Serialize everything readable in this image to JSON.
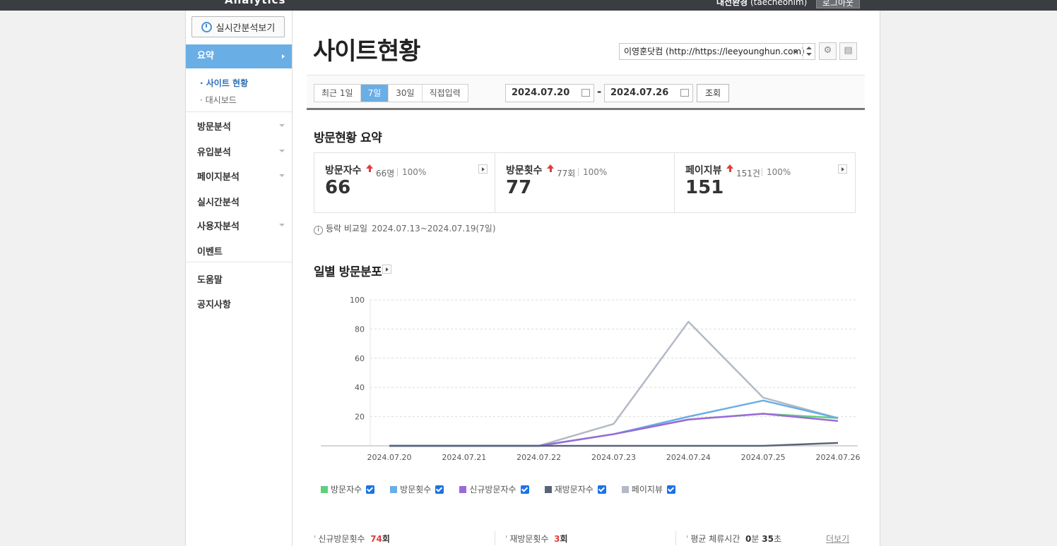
{
  "topbar": {
    "logo": "Analytics",
    "user_name": "대전환경",
    "user_id": "(taecheonim)",
    "logout": "로그아웃"
  },
  "sidebar": {
    "realtime_button": "실시간분석보기",
    "active_item": "요약",
    "sub_items": [
      "· 사이트 현황",
      "· 대시보드"
    ],
    "items": [
      "방문분석",
      "유입분석",
      "페이지분석",
      "실시간분석",
      "사용자분석",
      "이벤트",
      "도움말",
      "공지사항"
    ]
  },
  "page": {
    "title": "사이트현황",
    "site_select": "이영훈닷컴 (http://https://leeyounghun.com)"
  },
  "filter": {
    "ranges": [
      "최근 1일",
      "7일",
      "30일",
      "직접입력"
    ],
    "active_range": "7일",
    "start_date": "2024.07.20",
    "end_date": "2024.07.26",
    "dash": "-",
    "query_button": "조회"
  },
  "summary": {
    "title": "방문현황 요약",
    "cards": [
      {
        "label": "방문자수",
        "compare": "66명",
        "pct": "100%",
        "value": "66"
      },
      {
        "label": "방문횟수",
        "compare": "77회",
        "pct": "100%",
        "value": "77"
      },
      {
        "label": "페이지뷰",
        "compare": "151건",
        "pct": "100%",
        "value": "151"
      }
    ],
    "compare_label": "등락 비교일",
    "compare_range": "2024.07.13~2024.07.19(7일)"
  },
  "daily": {
    "title": "일별 방문분포"
  },
  "chart_data": {
    "type": "line",
    "x": [
      "2024.07.20",
      "2024.07.21",
      "2024.07.22",
      "2024.07.23",
      "2024.07.24",
      "2024.07.25",
      "2024.07.26"
    ],
    "yticks": [
      "100",
      "80",
      "60",
      "40",
      "20"
    ],
    "ylim": [
      0,
      100
    ],
    "grid": true,
    "series": [
      {
        "name": "방문자수",
        "color": "#5fd07a",
        "values": [
          0,
          0,
          0,
          8,
          18,
          22,
          19
        ]
      },
      {
        "name": "방문횟수",
        "color": "#6aaee6",
        "values": [
          0,
          0,
          0,
          8,
          20,
          31,
          19
        ]
      },
      {
        "name": "신규방문자수",
        "color": "#9b6ad8",
        "values": [
          0,
          0,
          0,
          8,
          18,
          22,
          17
        ]
      },
      {
        "name": "재방문자수",
        "color": "#5a6478",
        "values": [
          0,
          0,
          0,
          0,
          0,
          0,
          2
        ]
      },
      {
        "name": "페이지뷰",
        "color": "#b3bac6",
        "values": [
          0,
          0,
          0,
          15,
          85,
          33,
          19
        ]
      }
    ]
  },
  "bottom_stats": [
    {
      "label": "신규방문횟수",
      "value": "74",
      "unit": "회"
    },
    {
      "label": "재방문횟수",
      "value": "3",
      "unit": "회"
    },
    {
      "label": "평균 체류시간",
      "min": "0",
      "min_unit": "분",
      "sec": "35",
      "sec_unit": "초"
    }
  ],
  "more_link": "더보기"
}
